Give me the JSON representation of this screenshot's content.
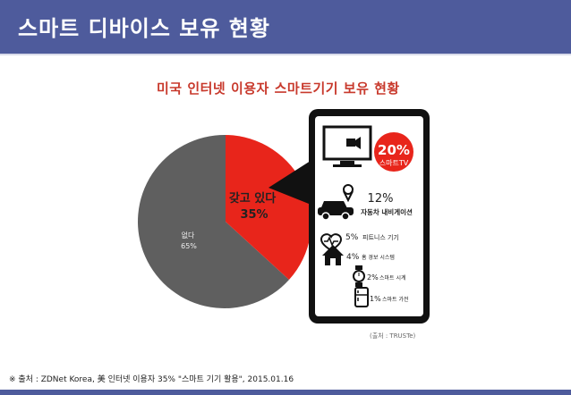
{
  "title_bar": {
    "title": "스마트 디바이스 보유 현황"
  },
  "figure": {
    "title": "미국 인터넷 이용자 스마트기기 보유 현황",
    "pie": {
      "slices": [
        {
          "label": "갖고 있다",
          "percent_label": "35%",
          "value": 35,
          "color": "#e8251b"
        },
        {
          "label": "없다",
          "percent_label": "65%",
          "value": 65,
          "color": "#5f5f5f"
        }
      ]
    },
    "devices": [
      {
        "percent": "20%",
        "label": "스마트TV",
        "icon": "tv-icon"
      },
      {
        "percent": "12%",
        "label": "자동차 내비게이션",
        "icon": "car-icon"
      },
      {
        "percent": "5%",
        "label": "피트니스 기기",
        "icon": "heart-icon"
      },
      {
        "percent": "4%",
        "label": "홈 경보 시스템",
        "icon": "home-icon"
      },
      {
        "percent": "2%",
        "label": "스마트 시계",
        "icon": "watch-icon"
      },
      {
        "percent": "1%",
        "label": "스마트 가전",
        "icon": "fridge-icon"
      }
    ],
    "source": "(출처 : TRUSTe)"
  },
  "footnote": "※ 출처 : ZDNet Korea, 美 인터넷 이용자 35% \"스마트 기기 활용\", 2015.01.16",
  "colors": {
    "header": "#4e5b9c",
    "accent": "#e8251b",
    "gray": "#5f5f5f"
  }
}
